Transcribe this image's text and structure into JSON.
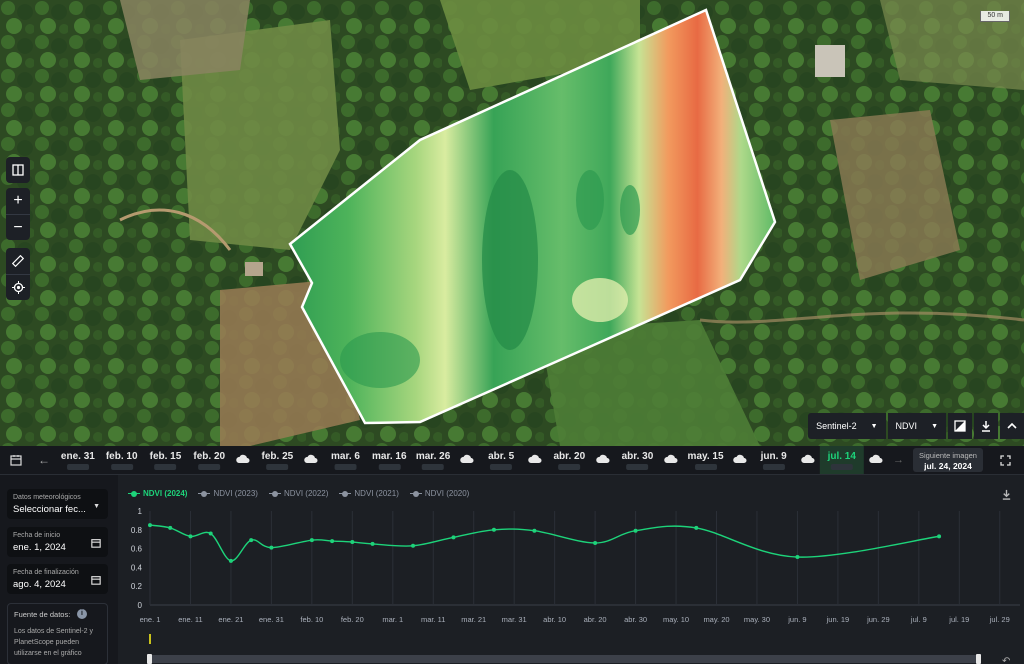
{
  "map": {
    "scale_label": "50 m",
    "tools": [
      {
        "name": "compare-icon"
      },
      {
        "name": "zoom-in-icon"
      },
      {
        "name": "zoom-out-icon"
      },
      {
        "name": "ruler-icon"
      },
      {
        "name": "locate-icon"
      }
    ],
    "satellite_select": "Sentinel-2",
    "index_select": "NDVI"
  },
  "timeline": {
    "dates": [
      {
        "label": "ene. 31",
        "type": "date"
      },
      {
        "label": "feb. 10",
        "type": "date"
      },
      {
        "label": "feb. 15",
        "type": "date"
      },
      {
        "label": "feb. 20",
        "type": "date"
      },
      {
        "type": "cloud"
      },
      {
        "label": "feb. 25",
        "type": "date"
      },
      {
        "type": "cloud"
      },
      {
        "label": "mar. 6",
        "type": "date"
      },
      {
        "label": "mar. 16",
        "type": "date"
      },
      {
        "label": "mar. 26",
        "type": "date"
      },
      {
        "type": "cloud"
      },
      {
        "label": "abr. 5",
        "type": "date"
      },
      {
        "type": "cloud"
      },
      {
        "label": "abr. 20",
        "type": "date"
      },
      {
        "type": "cloud"
      },
      {
        "label": "abr. 30",
        "type": "date"
      },
      {
        "type": "cloud"
      },
      {
        "label": "may. 15",
        "type": "date"
      },
      {
        "type": "cloud"
      },
      {
        "label": "jun. 9",
        "type": "date"
      },
      {
        "type": "cloud"
      },
      {
        "label": "jul. 14",
        "type": "date",
        "active": true
      },
      {
        "type": "cloud"
      }
    ],
    "next_label": "Siguiente imagen",
    "next_date": "jul. 24, 2024"
  },
  "sidebar": {
    "weather_label": "Datos meteorológicos",
    "weather_value": "Seleccionar fec...",
    "start_label": "Fecha de inicio",
    "start_value": "ene. 1, 2024",
    "end_label": "Fecha de finalización",
    "end_value": "ago. 4, 2024",
    "source_label": "Fuente de datos:",
    "source_text": "Los datos de Sentinel-2 y PlanetScope pueden utilizarse en el gráfico"
  },
  "colors": {
    "accent": "#1dd37a",
    "muted_series": "#8c93a0"
  },
  "chart_data": {
    "type": "line",
    "legend": [
      {
        "name": "NDVI (2024)",
        "active": true
      },
      {
        "name": "NDVI (2023)",
        "active": false
      },
      {
        "name": "NDVI (2022)",
        "active": false
      },
      {
        "name": "NDVI (2021)",
        "active": false
      },
      {
        "name": "NDVI (2020)",
        "active": false
      }
    ],
    "ylim": [
      0,
      1
    ],
    "yticks": [
      "0",
      "0.2",
      "0.4",
      "0.6",
      "0.8",
      "1"
    ],
    "xticks": [
      "ene. 1",
      "ene. 11",
      "ene. 21",
      "ene. 31",
      "feb. 10",
      "feb. 20",
      "mar. 1",
      "mar. 11",
      "mar. 21",
      "mar. 31",
      "abr. 10",
      "abr. 20",
      "abr. 30",
      "may. 10",
      "may. 20",
      "may. 30",
      "jun. 9",
      "jun. 19",
      "jun. 29",
      "jul. 9",
      "jul. 19",
      "jul. 29"
    ],
    "series": [
      {
        "name": "NDVI (2024)",
        "points": [
          {
            "day": 0,
            "value": 0.85
          },
          {
            "day": 5,
            "value": 0.82
          },
          {
            "day": 10,
            "value": 0.73
          },
          {
            "day": 15,
            "value": 0.76
          },
          {
            "day": 20,
            "value": 0.47
          },
          {
            "day": 25,
            "value": 0.69
          },
          {
            "day": 30,
            "value": 0.61
          },
          {
            "day": 40,
            "value": 0.69
          },
          {
            "day": 45,
            "value": 0.68
          },
          {
            "day": 50,
            "value": 0.67
          },
          {
            "day": 55,
            "value": 0.65
          },
          {
            "day": 65,
            "value": 0.63
          },
          {
            "day": 75,
            "value": 0.72
          },
          {
            "day": 85,
            "value": 0.8
          },
          {
            "day": 95,
            "value": 0.79
          },
          {
            "day": 110,
            "value": 0.66
          },
          {
            "day": 120,
            "value": 0.79
          },
          {
            "day": 135,
            "value": 0.82
          },
          {
            "day": 160,
            "value": 0.51
          },
          {
            "day": 195,
            "value": 0.73
          }
        ]
      }
    ]
  }
}
